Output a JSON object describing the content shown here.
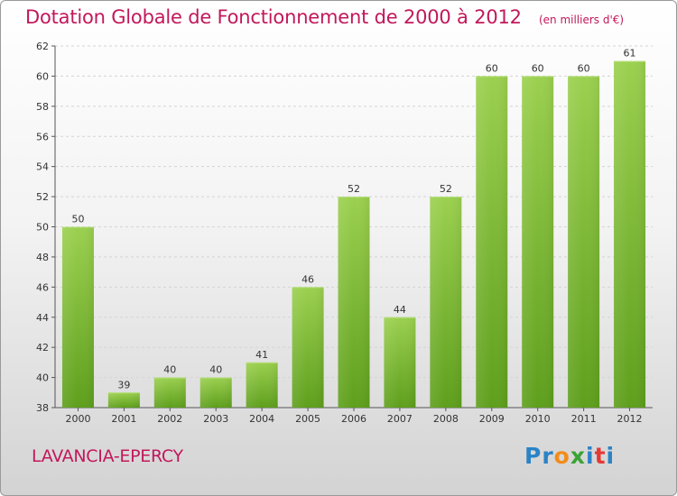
{
  "chart_data": {
    "type": "bar",
    "title": "Dotation Globale de Fonctionnement de 2000 à 2012",
    "subtitle": "(en milliers d'€)",
    "categories": [
      "2000",
      "2001",
      "2002",
      "2003",
      "2004",
      "2005",
      "2006",
      "2007",
      "2008",
      "2009",
      "2010",
      "2011",
      "2012"
    ],
    "values": [
      50,
      39,
      40,
      40,
      41,
      46,
      52,
      44,
      52,
      60,
      60,
      60,
      61
    ],
    "ylim": [
      38,
      62
    ],
    "yticks": [
      38,
      40,
      42,
      44,
      46,
      48,
      50,
      52,
      54,
      56,
      58,
      60,
      62
    ],
    "grid": true,
    "legend": "none",
    "bar_color": "#7cc232"
  },
  "footer": {
    "commune": "LAVANCIA-EPERCY"
  },
  "logo": {
    "text": "Proxiti",
    "letters": [
      {
        "ch": "P",
        "color": "#2a83c6"
      },
      {
        "ch": "r",
        "color": "#2a83c6"
      },
      {
        "ch": "o",
        "color": "#f28c1b"
      },
      {
        "ch": "x",
        "color": "#3aa335"
      },
      {
        "ch": "i",
        "color": "#2a83c6"
      },
      {
        "ch": "t",
        "color": "#e53935"
      },
      {
        "ch": "i",
        "color": "#2a83c6"
      }
    ]
  }
}
